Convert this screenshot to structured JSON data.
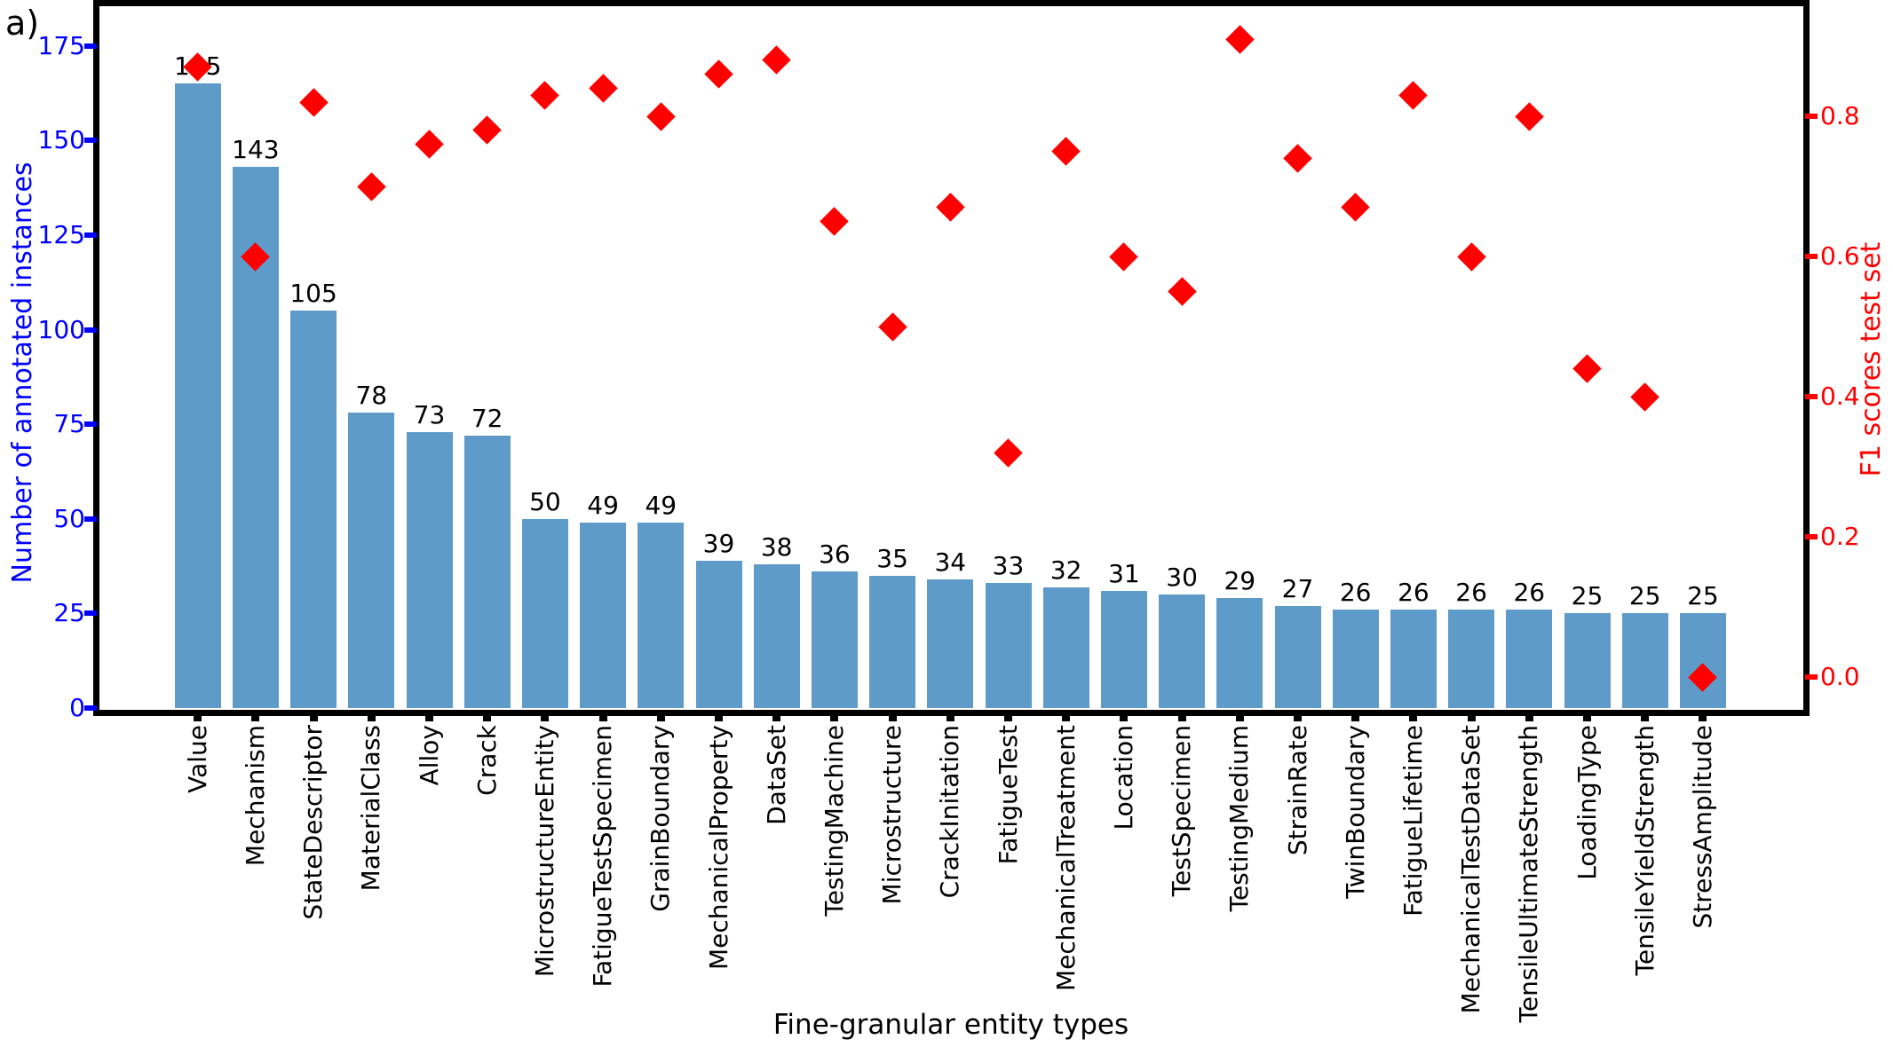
{
  "figure_label": "a)",
  "chart_data": {
    "type": "bar",
    "subtype": "dual-axis bar + diamond scatter",
    "title": "",
    "xlabel": "Fine-granular entity types",
    "ylabel_left": "Number of annotated instances",
    "ylabel_right": "F1 scores test set",
    "categories": [
      "Value",
      "Mechanism",
      "StateDescriptor",
      "MaterialClass",
      "Alloy",
      "Crack",
      "MicrostructureEntity",
      "FatigueTestSpecimen",
      "GrainBoundary",
      "MechanicalProperty",
      "DataSet",
      "TestingMachine",
      "Microstructure",
      "CrackInitation",
      "FatigueTest",
      "MechanicalTreatment",
      "Location",
      "TestSpecimen",
      "TestingMedium",
      "StrainRate",
      "TwinBoundary",
      "FatigueLifetime",
      "MechanicalTestDataSet",
      "TensileUltimateStrength",
      "LoadingType",
      "TensileYieldStrength",
      "StressAmplitude"
    ],
    "series": [
      {
        "name": "Number of annotated instances",
        "type": "bar",
        "axis": "left",
        "values": [
          165,
          143,
          105,
          78,
          73,
          72,
          50,
          49,
          49,
          39,
          38,
          36,
          35,
          34,
          33,
          32,
          31,
          30,
          29,
          27,
          26,
          26,
          26,
          26,
          25,
          25,
          25
        ],
        "value_labels_shown": true
      },
      {
        "name": "F1 scores test set",
        "type": "scatter",
        "marker": "diamond",
        "axis": "right",
        "values": [
          0.87,
          0.6,
          0.82,
          0.7,
          0.76,
          0.78,
          0.83,
          0.84,
          0.8,
          0.86,
          0.88,
          0.65,
          0.5,
          0.67,
          0.32,
          0.75,
          0.6,
          0.55,
          0.91,
          0.74,
          0.67,
          0.83,
          0.6,
          0.8,
          0.44,
          0.4,
          0.0
        ]
      }
    ],
    "yticks_left": [
      "0",
      "25",
      "50",
      "75",
      "100",
      "125",
      "150",
      "175"
    ],
    "yticks_left_values": [
      0,
      25,
      50,
      75,
      100,
      125,
      150,
      175
    ],
    "yticks_right": [
      "0.0",
      "0.2",
      "0.4",
      "0.6",
      "0.8"
    ],
    "yticks_right_values": [
      0.0,
      0.2,
      0.4,
      0.6,
      0.8
    ],
    "ylim_left": [
      0,
      185.5
    ],
    "ylim_right": [
      0,
      0.957
    ],
    "grid": false,
    "legend": "none",
    "colors": {
      "bar": "#5E9BC9",
      "scatter": "#FF0000",
      "left_axis_text": "#0000FF",
      "right_axis_text": "#FF0000",
      "spine": "#000000",
      "background": "#FFFFFF"
    }
  }
}
